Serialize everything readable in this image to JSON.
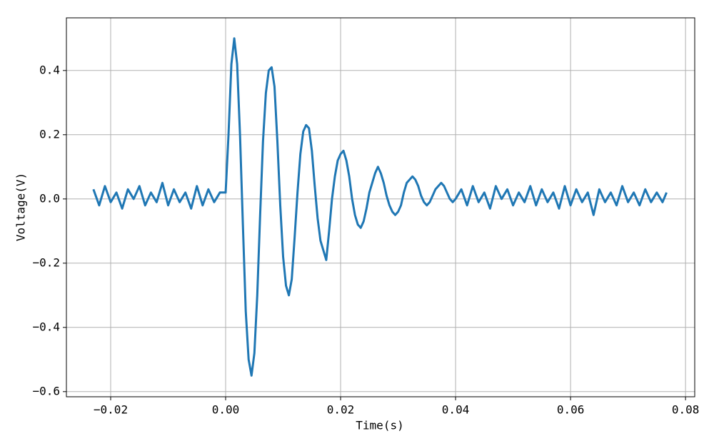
{
  "chart_data": {
    "type": "line",
    "xlabel": "Time(s)",
    "ylabel": "Voltage(V)",
    "xlim": [
      -0.0277,
      0.0816
    ],
    "ylim": [
      -0.616,
      0.564
    ],
    "xticks": [
      {
        "value": -0.02,
        "label": "−0.02"
      },
      {
        "value": 0,
        "label": "0.00"
      },
      0.02,
      0.04,
      0.06,
      0.08
    ],
    "yticks": [
      {
        "value": -0.6,
        "label": "−0.6"
      },
      {
        "value": -0.4,
        "label": "−0.4"
      },
      {
        "value": -0.2,
        "label": "−0.2"
      },
      {
        "value": 0,
        "label": "0.0"
      },
      0.2,
      0.4
    ],
    "grid": true,
    "x": [
      -0.023,
      -0.022,
      -0.021,
      -0.02,
      -0.019,
      -0.018,
      -0.017,
      -0.016,
      -0.015,
      -0.014,
      -0.013,
      -0.012,
      -0.011,
      -0.01,
      -0.009,
      -0.008,
      -0.007,
      -0.006,
      -0.005,
      -0.004,
      -0.003,
      -0.002,
      -0.001,
      0,
      0.0005,
      0.001,
      0.0015,
      0.002,
      0.0025,
      0.003,
      0.0035,
      0.004,
      0.0045,
      0.005,
      0.0055,
      0.006,
      0.0065,
      0.007,
      0.0075,
      0.008,
      0.0085,
      0.009,
      0.0095,
      0.01,
      0.0105,
      0.011,
      0.0115,
      0.012,
      0.0125,
      0.013,
      0.0135,
      0.014,
      0.0145,
      0.015,
      0.0155,
      0.016,
      0.0165,
      0.017,
      0.0175,
      0.018,
      0.0185,
      0.019,
      0.0195,
      0.02,
      0.0205,
      0.021,
      0.0215,
      0.022,
      0.0225,
      0.023,
      0.0235,
      0.024,
      0.0245,
      0.025,
      0.0255,
      0.026,
      0.0265,
      0.027,
      0.0275,
      0.028,
      0.0285,
      0.029,
      0.0295,
      0.03,
      0.0305,
      0.031,
      0.0315,
      0.032,
      0.0325,
      0.033,
      0.0335,
      0.034,
      0.0345,
      0.035,
      0.0355,
      0.036,
      0.0365,
      0.037,
      0.0375,
      0.038,
      0.0385,
      0.039,
      0.0395,
      0.04,
      0.041,
      0.042,
      0.043,
      0.044,
      0.045,
      0.046,
      0.047,
      0.048,
      0.049,
      0.05,
      0.051,
      0.052,
      0.053,
      0.054,
      0.055,
      0.056,
      0.057,
      0.058,
      0.059,
      0.06,
      0.061,
      0.062,
      0.063,
      0.064,
      0.065,
      0.066,
      0.067,
      0.068,
      0.069,
      0.07,
      0.071,
      0.072,
      0.073,
      0.074,
      0.075,
      0.076,
      0.0767
    ],
    "series": [
      {
        "color": "#1f77b4",
        "values": [
          0.03,
          -0.02,
          0.04,
          -0.01,
          0.02,
          -0.03,
          0.03,
          0.0,
          0.04,
          -0.02,
          0.02,
          -0.01,
          0.05,
          -0.02,
          0.03,
          -0.01,
          0.02,
          -0.03,
          0.04,
          -0.02,
          0.03,
          -0.01,
          0.02,
          0.02,
          0.2,
          0.42,
          0.5,
          0.42,
          0.2,
          -0.08,
          -0.35,
          -0.5,
          -0.55,
          -0.48,
          -0.3,
          -0.05,
          0.18,
          0.33,
          0.4,
          0.41,
          0.35,
          0.18,
          -0.02,
          -0.18,
          -0.27,
          -0.3,
          -0.25,
          -0.12,
          0.02,
          0.14,
          0.21,
          0.23,
          0.22,
          0.15,
          0.04,
          -0.06,
          -0.13,
          -0.16,
          -0.19,
          -0.1,
          0.0,
          0.07,
          0.12,
          0.14,
          0.15,
          0.12,
          0.07,
          0.0,
          -0.05,
          -0.08,
          -0.09,
          -0.07,
          -0.03,
          0.02,
          0.05,
          0.08,
          0.1,
          0.08,
          0.05,
          0.01,
          -0.02,
          -0.04,
          -0.05,
          -0.04,
          -0.02,
          0.02,
          0.05,
          0.06,
          0.07,
          0.06,
          0.04,
          0.01,
          -0.01,
          -0.02,
          -0.01,
          0.01,
          0.03,
          0.04,
          0.05,
          0.04,
          0.02,
          0.0,
          -0.01,
          0.0,
          0.03,
          -0.02,
          0.04,
          -0.01,
          0.02,
          -0.03,
          0.04,
          0.0,
          0.03,
          -0.02,
          0.02,
          -0.01,
          0.04,
          -0.02,
          0.03,
          -0.01,
          0.02,
          -0.03,
          0.04,
          -0.02,
          0.03,
          -0.01,
          0.02,
          -0.05,
          0.03,
          -0.01,
          0.02,
          -0.02,
          0.04,
          -0.01,
          0.02,
          -0.02,
          0.03,
          -0.01,
          0.02,
          -0.01,
          0.02
        ]
      }
    ]
  }
}
